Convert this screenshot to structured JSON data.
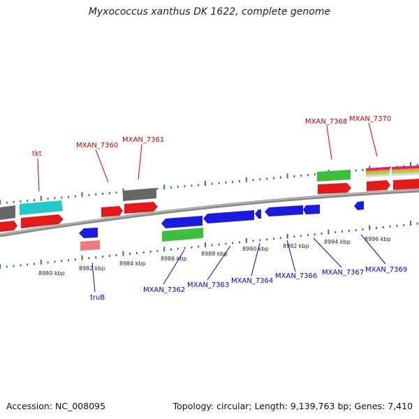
{
  "title": "Myxococcus xanthus DK 1622, complete genome",
  "footer": {
    "accession": "Accession: NC_008095",
    "summary": "Topology: circular; Length: 9,139,763 bp; Genes: 7,410"
  },
  "colors": {
    "backbone": "#8c8c8c",
    "upper_label": "#cc0000",
    "lower_label": "#0000cc",
    "tick": "#2a8a2a"
  },
  "ruler_labels": [
    "8980 kbp",
    "8982 kbp",
    "8984 kbp",
    "8986 kbp",
    "8988 kbp",
    "8990 kbp",
    "8992 kbp",
    "8994 kbp",
    "8996 kbp"
  ],
  "upper_labels": [
    "tkt",
    "MXAN_7360",
    "MXAN_7361",
    "MXAN_7368",
    "MXAN_7370"
  ],
  "lower_labels": [
    "truB",
    "MXAN_7362",
    "MXAN_7363",
    "MXAN_7364",
    "MXAN_7366",
    "MXAN_7367",
    "MXAN_7369"
  ]
}
